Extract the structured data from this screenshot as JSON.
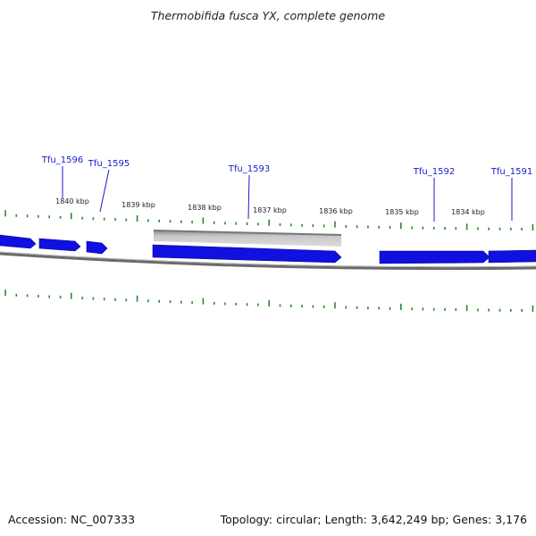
{
  "title": "Thermobifida fusca YX, complete genome",
  "accession": "Accession: NC_007333",
  "summary": "Topology: circular; Length: 3,642,249 bp; Genes: 3,176",
  "kbp_labels": [
    "1840 kbp",
    "1839 kbp",
    "1838 kbp",
    "1837 kbp",
    "1836 kbp",
    "1835 kbp",
    "1834 kbp"
  ],
  "gene_labels": [
    "Tfu_1596",
    "Tfu_1595",
    "Tfu_1593",
    "Tfu_1592",
    "Tfu_1591"
  ],
  "colors": {
    "gene": "#1010e0",
    "gene_label": "#1a1acc",
    "gc_ticks": "#2a8a2a",
    "backbone": "#707070",
    "selection": "#b8b8b8"
  }
}
